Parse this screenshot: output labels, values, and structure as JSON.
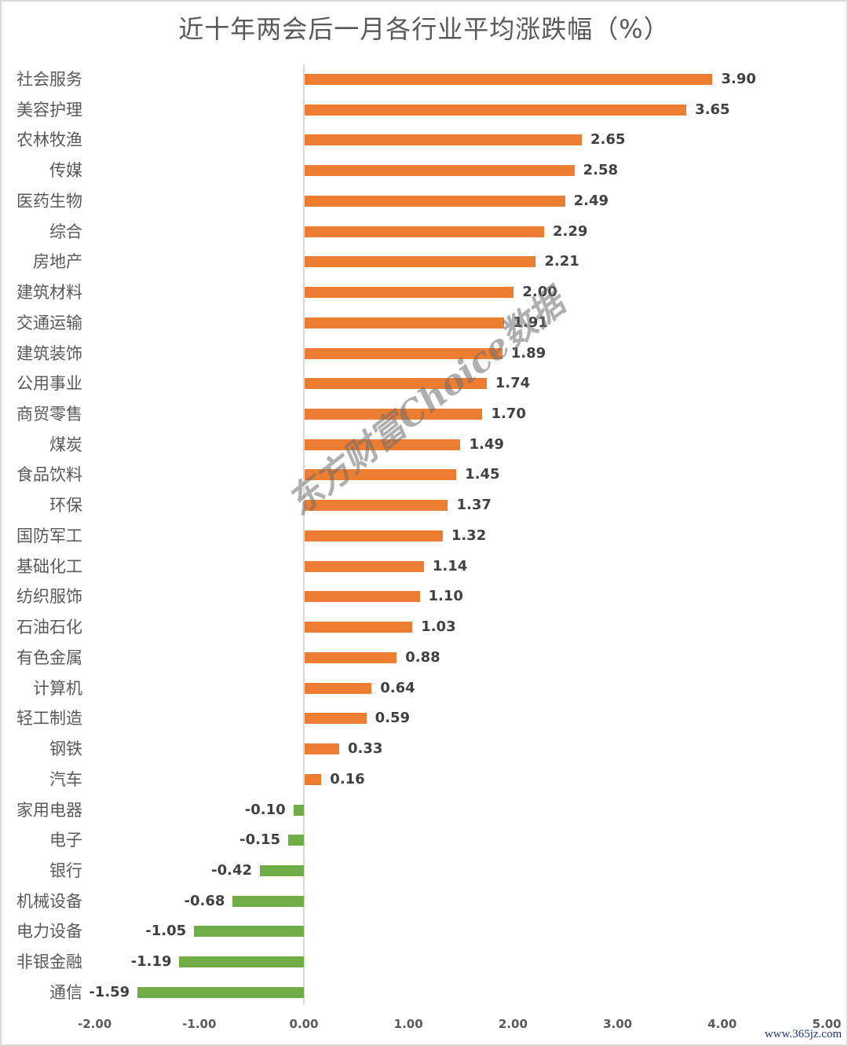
{
  "title": "近十年两会后一月各行业平均涨跌幅（%）",
  "watermark": "东方财富Choice数据",
  "site_label": "www.365jz.com",
  "colors": {
    "positive": "#ED7D31",
    "negative": "#70AD47",
    "axis": "#D9D9D9",
    "text": "#595959"
  },
  "chart_data": {
    "type": "bar",
    "orientation": "horizontal",
    "title": "近十年两会后一月各行业平均涨跌幅（%）",
    "xlabel": "",
    "ylabel": "",
    "xlim": [
      -2.0,
      5.0
    ],
    "x_ticks": [
      "-2.00",
      "-1.00",
      "0.00",
      "1.00",
      "2.00",
      "3.00",
      "4.00",
      "5.00"
    ],
    "grid": false,
    "legend": null,
    "categories": [
      "社会服务",
      "美容护理",
      "农林牧渔",
      "传媒",
      "医药生物",
      "综合",
      "房地产",
      "建筑材料",
      "交通运输",
      "建筑装饰",
      "公用事业",
      "商贸零售",
      "煤炭",
      "食品饮料",
      "环保",
      "国防军工",
      "基础化工",
      "纺织服饰",
      "石油石化",
      "有色金属",
      "计算机",
      "轻工制造",
      "钢铁",
      "汽车",
      "家用电器",
      "电子",
      "银行",
      "机械设备",
      "电力设备",
      "非银金融",
      "通信"
    ],
    "values": [
      3.9,
      3.65,
      2.65,
      2.58,
      2.49,
      2.29,
      2.21,
      2.0,
      1.91,
      1.89,
      1.74,
      1.7,
      1.49,
      1.45,
      1.37,
      1.32,
      1.14,
      1.1,
      1.03,
      0.88,
      0.64,
      0.59,
      0.33,
      0.16,
      -0.1,
      -0.15,
      -0.42,
      -0.68,
      -1.05,
      -1.19,
      -1.59
    ],
    "value_labels": [
      "3.90",
      "3.65",
      "2.65",
      "2.58",
      "2.49",
      "2.29",
      "2.21",
      "2.00",
      "1.91",
      "1.89",
      "1.74",
      "1.70",
      "1.49",
      "1.45",
      "1.37",
      "1.32",
      "1.14",
      "1.10",
      "1.03",
      "0.88",
      "0.64",
      "0.59",
      "0.33",
      "0.16",
      "-0.10",
      "-0.15",
      "-0.42",
      "-0.68",
      "-1.05",
      "-1.19",
      "-1.59"
    ]
  }
}
